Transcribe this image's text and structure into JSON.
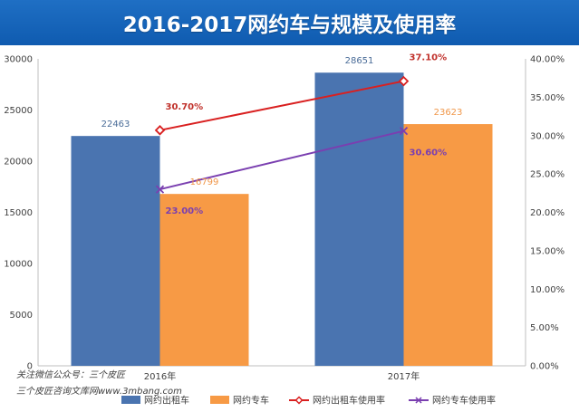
{
  "chart_data": {
    "type": "bar",
    "title": "2016-2017网约车与规模及使用率",
    "categories": [
      "2016年",
      "2017年"
    ],
    "y_left": {
      "ticks": [
        0,
        5000,
        10000,
        15000,
        20000,
        25000,
        30000
      ],
      "range": [
        0,
        30000
      ]
    },
    "y_right": {
      "ticks": [
        "0.00%",
        "5.00%",
        "10.00%",
        "15.00%",
        "20.00%",
        "25.00%",
        "30.00%",
        "35.00%",
        "40.00%"
      ],
      "range": [
        0,
        40
      ]
    },
    "bar_series": [
      {
        "name": "网约出租车",
        "values": [
          22463,
          28651
        ],
        "labels": [
          "22463",
          "28651"
        ],
        "color": "#4a74b0"
      },
      {
        "name": "网约专车",
        "values": [
          16799,
          23623
        ],
        "labels": [
          "16799",
          "23623"
        ],
        "color": "#f79a45"
      }
    ],
    "line_series": [
      {
        "name": "网约出租车使用率",
        "values": [
          30.7,
          37.1
        ],
        "labels": [
          "30.70%",
          "37.10%"
        ],
        "color": "#d92020",
        "label_color": "#c0302a"
      },
      {
        "name": "网约专车使用率",
        "values": [
          23.0,
          30.6
        ],
        "labels": [
          "23.00%",
          "30.60%"
        ],
        "color": "#7a3fb0",
        "label_color": "#7a3fb0"
      }
    ],
    "legend_position": "bottom",
    "grid": false
  },
  "watermark": {
    "line1": "关注微信公众号：三个皮匠",
    "line2": "三个皮匠咨询文库网www.3mbang.com"
  }
}
